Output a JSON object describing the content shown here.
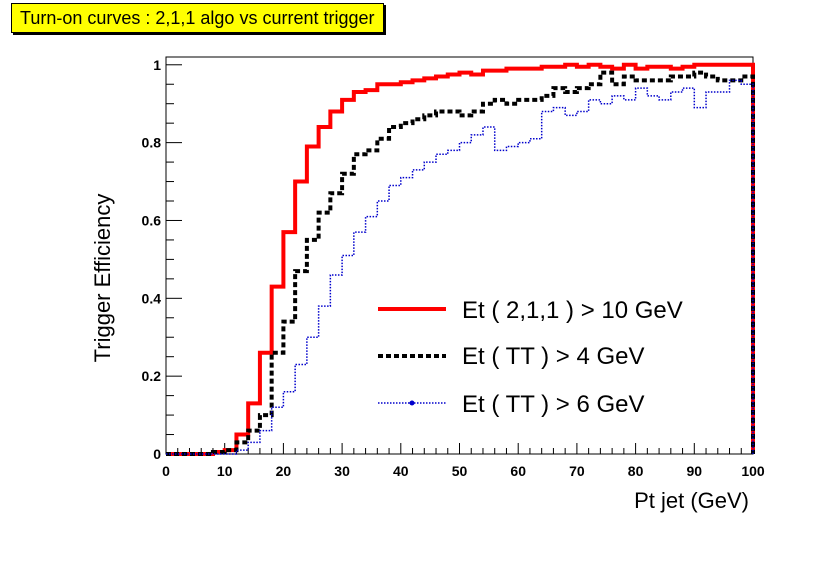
{
  "chart_data": {
    "type": "line",
    "title": "Turn-on curves : 2,1,1 algo vs current trigger",
    "xlabel": "Pt jet (GeV)",
    "ylabel": "Trigger Efficiency",
    "xlim": [
      0,
      100
    ],
    "ylim": [
      0,
      1.02
    ],
    "x_ticks": [
      "0",
      "10",
      "20",
      "30",
      "40",
      "50",
      "60",
      "70",
      "80",
      "90",
      "100"
    ],
    "y_ticks": [
      "0",
      "0.2",
      "0.4",
      "0.6",
      "0.8",
      "1"
    ],
    "grid": false,
    "legend_placement": "bottom-right",
    "bin_width": 2,
    "bin_edges_start": 0,
    "series": [
      {
        "name": "Et ( 2,1,1 ) > 10 GeV",
        "color": "#ff0000",
        "style": "solid",
        "values": [
          0,
          0,
          0,
          0,
          0.005,
          0.01,
          0.05,
          0.13,
          0.26,
          0.43,
          0.57,
          0.7,
          0.79,
          0.84,
          0.88,
          0.91,
          0.93,
          0.935,
          0.95,
          0.95,
          0.955,
          0.96,
          0.965,
          0.97,
          0.975,
          0.98,
          0.975,
          0.985,
          0.985,
          0.99,
          0.99,
          0.99,
          0.995,
          0.995,
          1.0,
          0.995,
          1.0,
          0.995,
          0.99,
          1.0,
          0.99,
          0.995,
          0.995,
          0.99,
          0.995,
          1.0,
          1.0,
          1.0,
          1.0,
          1.0
        ]
      },
      {
        "name": "Et ( TT ) > 4 GeV",
        "color": "#000000",
        "style": "dashed",
        "values": [
          0,
          0,
          0,
          0,
          0.005,
          0.01,
          0.03,
          0.06,
          0.1,
          0.26,
          0.34,
          0.47,
          0.55,
          0.62,
          0.67,
          0.72,
          0.77,
          0.78,
          0.81,
          0.84,
          0.85,
          0.86,
          0.87,
          0.88,
          0.88,
          0.87,
          0.88,
          0.9,
          0.91,
          0.9,
          0.91,
          0.91,
          0.92,
          0.94,
          0.93,
          0.94,
          0.95,
          0.98,
          0.95,
          0.97,
          0.96,
          0.96,
          0.96,
          0.97,
          0.97,
          0.98,
          0.97,
          0.96,
          0.96,
          0.97
        ]
      },
      {
        "name": "Et ( TT ) > 6 GeV",
        "color": "#0000cc",
        "style": "dotted",
        "values": [
          0,
          0,
          0,
          0,
          0,
          0,
          0.01,
          0.03,
          0.06,
          0.12,
          0.16,
          0.23,
          0.3,
          0.38,
          0.46,
          0.51,
          0.57,
          0.61,
          0.65,
          0.69,
          0.71,
          0.73,
          0.75,
          0.77,
          0.78,
          0.8,
          0.82,
          0.84,
          0.78,
          0.79,
          0.8,
          0.81,
          0.88,
          0.89,
          0.87,
          0.88,
          0.91,
          0.9,
          0.92,
          0.91,
          0.94,
          0.92,
          0.91,
          0.93,
          0.94,
          0.89,
          0.93,
          0.93,
          0.96,
          0.95
        ]
      }
    ]
  }
}
